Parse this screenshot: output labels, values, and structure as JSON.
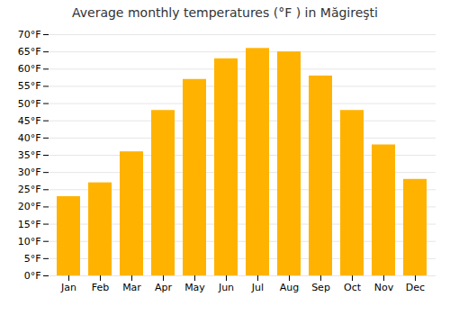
{
  "chart_data": {
    "type": "bar",
    "title": "Average monthly temperatures (°F ) in Măgireşti",
    "categories": [
      "Jan",
      "Feb",
      "Mar",
      "Apr",
      "May",
      "Jun",
      "Jul",
      "Aug",
      "Sep",
      "Oct",
      "Nov",
      "Dec"
    ],
    "values": [
      23,
      27,
      36,
      48,
      57,
      63,
      66,
      65,
      58,
      48,
      38,
      28
    ],
    "color": "#FFB300",
    "ylim": [
      0,
      70
    ],
    "yticks": [
      {
        "value": 0,
        "label": "0°F"
      },
      {
        "value": 5,
        "label": "5°F"
      },
      {
        "value": 10,
        "label": "10°F"
      },
      {
        "value": 15,
        "label": "15°F"
      },
      {
        "value": 20,
        "label": "20°F"
      },
      {
        "value": 25,
        "label": "25°F"
      },
      {
        "value": 30,
        "label": "30°F"
      },
      {
        "value": 35,
        "label": "35°F"
      },
      {
        "value": 40,
        "label": "40°F"
      },
      {
        "value": 45,
        "label": "45°F"
      },
      {
        "value": 50,
        "label": "50°F"
      },
      {
        "value": 55,
        "label": "55°F"
      },
      {
        "value": 60,
        "label": "60°F"
      },
      {
        "value": 65,
        "label": "65°F"
      },
      {
        "value": 70,
        "label": "70°F"
      }
    ],
    "grid": true
  }
}
